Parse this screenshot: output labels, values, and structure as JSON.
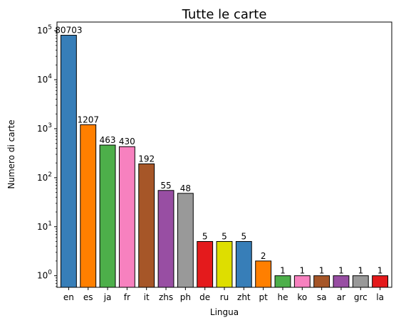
{
  "chart_data": {
    "type": "bar",
    "title": "Tutte le carte",
    "xlabel": "Lingua",
    "ylabel": "Numero di carte",
    "yscale": "log",
    "ylim": [
      0.58,
      150000
    ],
    "grid": false,
    "legend": "none",
    "categories": [
      "en",
      "es",
      "ja",
      "fr",
      "it",
      "zhs",
      "ph",
      "de",
      "ru",
      "zht",
      "pt",
      "he",
      "ko",
      "sa",
      "ar",
      "grc",
      "la"
    ],
    "values": [
      80703,
      1207,
      463,
      430,
      192,
      55,
      48,
      5,
      5,
      5,
      2,
      1,
      1,
      1,
      1,
      1,
      1
    ],
    "data_labels": [
      "80703",
      "1207",
      "463",
      "430",
      "192",
      "55",
      "48",
      "5",
      "5",
      "5",
      "2",
      "1",
      "1",
      "1",
      "1",
      "1",
      "1"
    ],
    "colors": [
      "#377eb8",
      "#ff7f00",
      "#4daf4a",
      "#f781bf",
      "#a65628",
      "#984ea3",
      "#999999",
      "#e41a1c",
      "#dede00",
      "#377eb8",
      "#ff7f00",
      "#4daf4a",
      "#f781bf",
      "#a65628",
      "#984ea3",
      "#999999",
      "#e41a1c"
    ],
    "y_ticks": [
      {
        "value": 1,
        "base": "10",
        "exp": "0"
      },
      {
        "value": 10,
        "base": "10",
        "exp": "1"
      },
      {
        "value": 100,
        "base": "10",
        "exp": "2"
      },
      {
        "value": 1000,
        "base": "10",
        "exp": "3"
      },
      {
        "value": 10000,
        "base": "10",
        "exp": "4"
      },
      {
        "value": 100000,
        "base": "10",
        "exp": "5"
      }
    ]
  }
}
